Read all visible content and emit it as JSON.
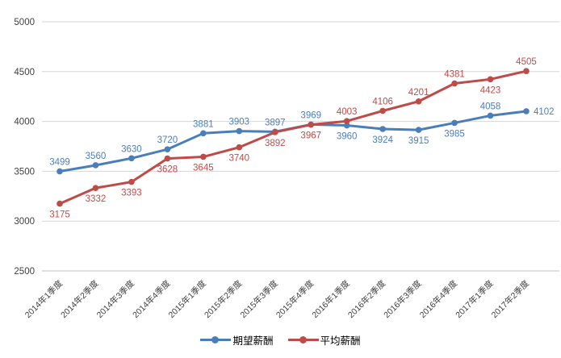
{
  "chart_data": {
    "type": "line",
    "title": "",
    "xlabel": "",
    "ylabel": "",
    "categories": [
      "2014年1季度",
      "2014年2季度",
      "2014年3季度",
      "2014年4季度",
      "2015年1季度",
      "2015年2季度",
      "2015年3季度",
      "2015年4季度",
      "2016年1季度",
      "2016年2季度",
      "2016年3季度",
      "2016年4季度",
      "2017年1季度",
      "2017年2季度"
    ],
    "series": [
      {
        "name": "期望薪酬",
        "color": "#4A7EBB",
        "values": [
          3499,
          3560,
          3630,
          3720,
          3881,
          3903,
          3897,
          3969,
          3960,
          3924,
          3915,
          3985,
          4058,
          4102
        ],
        "label_positions": [
          "above",
          "above",
          "above",
          "above",
          "above",
          "above",
          "above",
          "above",
          "below",
          "below",
          "below",
          "below",
          "above",
          "right"
        ]
      },
      {
        "name": "平均薪酬",
        "color": "#BE4B48",
        "values": [
          3175,
          3332,
          3393,
          3628,
          3645,
          3740,
          3892,
          3967,
          4003,
          4106,
          4201,
          4381,
          4423,
          4505
        ],
        "label_positions": [
          "below",
          "below",
          "below",
          "below",
          "below",
          "below",
          "below",
          "below",
          "above",
          "above",
          "above",
          "above",
          "below",
          "above"
        ]
      }
    ],
    "ylim": [
      2500,
      5000
    ],
    "ytick_step": 500,
    "yticks": [
      "5000",
      "4500",
      "4000",
      "3500",
      "3000",
      "2500"
    ],
    "grid": "horizontal",
    "grid_color": "#D6D6D6",
    "axis_color": "#BFBFBF",
    "tick_label_color": "#404040",
    "legend_position": "bottom-center",
    "marker": "circle",
    "data_labels": "on"
  }
}
